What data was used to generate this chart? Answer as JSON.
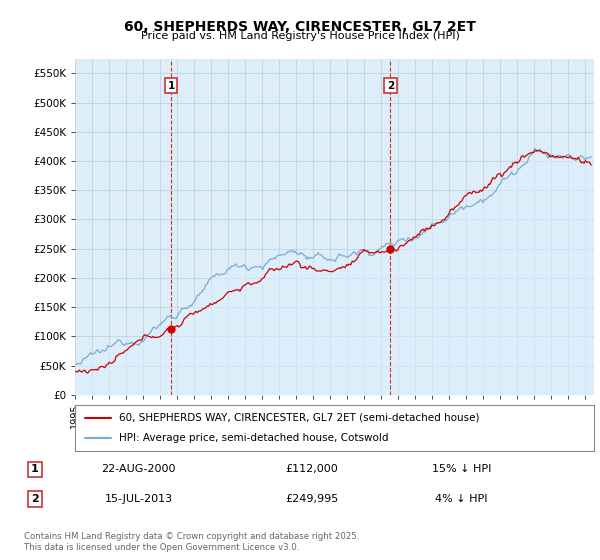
{
  "title": "60, SHEPHERDS WAY, CIRENCESTER, GL7 2ET",
  "subtitle": "Price paid vs. HM Land Registry's House Price Index (HPI)",
  "ylabel_ticks": [
    "£0",
    "£50K",
    "£100K",
    "£150K",
    "£200K",
    "£250K",
    "£300K",
    "£350K",
    "£400K",
    "£450K",
    "£500K",
    "£550K"
  ],
  "ytick_vals": [
    0,
    50000,
    100000,
    150000,
    200000,
    250000,
    300000,
    350000,
    400000,
    450000,
    500000,
    550000
  ],
  "ylim": [
    0,
    575000
  ],
  "xlim_start": 1995.0,
  "xlim_end": 2025.5,
  "marker1_x": 2000.64,
  "marker2_x": 2013.54,
  "marker1_y": 112000,
  "marker2_y": 249995,
  "legend_line1": "60, SHEPHERDS WAY, CIRENCESTER, GL7 2ET (semi-detached house)",
  "legend_line2": "HPI: Average price, semi-detached house, Cotswold",
  "annotation1_date": "22-AUG-2000",
  "annotation1_price": "£112,000",
  "annotation1_hpi": "15% ↓ HPI",
  "annotation2_date": "15-JUL-2013",
  "annotation2_price": "£249,995",
  "annotation2_hpi": "4% ↓ HPI",
  "footnote": "Contains HM Land Registry data © Crown copyright and database right 2025.\nThis data is licensed under the Open Government Licence v3.0.",
  "red_color": "#cc0000",
  "blue_color": "#7aabcf",
  "blue_fill": "#ddeeff",
  "background_color": "#ffffff",
  "chart_bg": "#ddeef8",
  "grid_color": "#b8cfe0"
}
